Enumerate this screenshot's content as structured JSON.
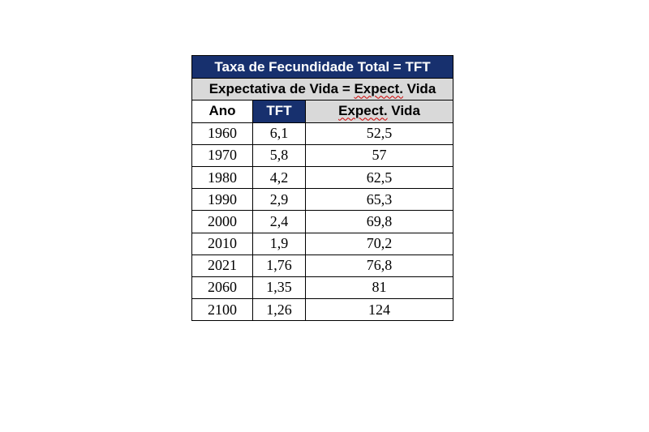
{
  "table": {
    "title": "Taxa de Fecundidade Total = TFT",
    "subtitle_prefix": "Expectativa de Vida = ",
    "subtitle_term": "Expect.",
    "subtitle_suffix": " Vida",
    "headers": {
      "ano": "Ano",
      "tft": "TFT",
      "exp_term": "Expect.",
      "exp_suffix": " Vida"
    },
    "rows": [
      {
        "ano": "1960",
        "tft": "6,1",
        "exp": "52,5"
      },
      {
        "ano": "1970",
        "tft": "5,8",
        "exp": "57"
      },
      {
        "ano": "1980",
        "tft": "4,2",
        "exp": "62,5"
      },
      {
        "ano": "1990",
        "tft": "2,9",
        "exp": "65,3"
      },
      {
        "ano": "2000",
        "tft": "2,4",
        "exp": "69,8"
      },
      {
        "ano": "2010",
        "tft": "1,9",
        "exp": "70,2"
      },
      {
        "ano": "2021",
        "tft": "1,76",
        "exp": "76,8"
      },
      {
        "ano": "2060",
        "tft": "1,35",
        "exp": "81"
      },
      {
        "ano": "2100",
        "tft": "1,26",
        "exp": "124"
      }
    ]
  },
  "colors": {
    "header_blue": "#17306e",
    "header_gray": "#d9d9d9"
  }
}
